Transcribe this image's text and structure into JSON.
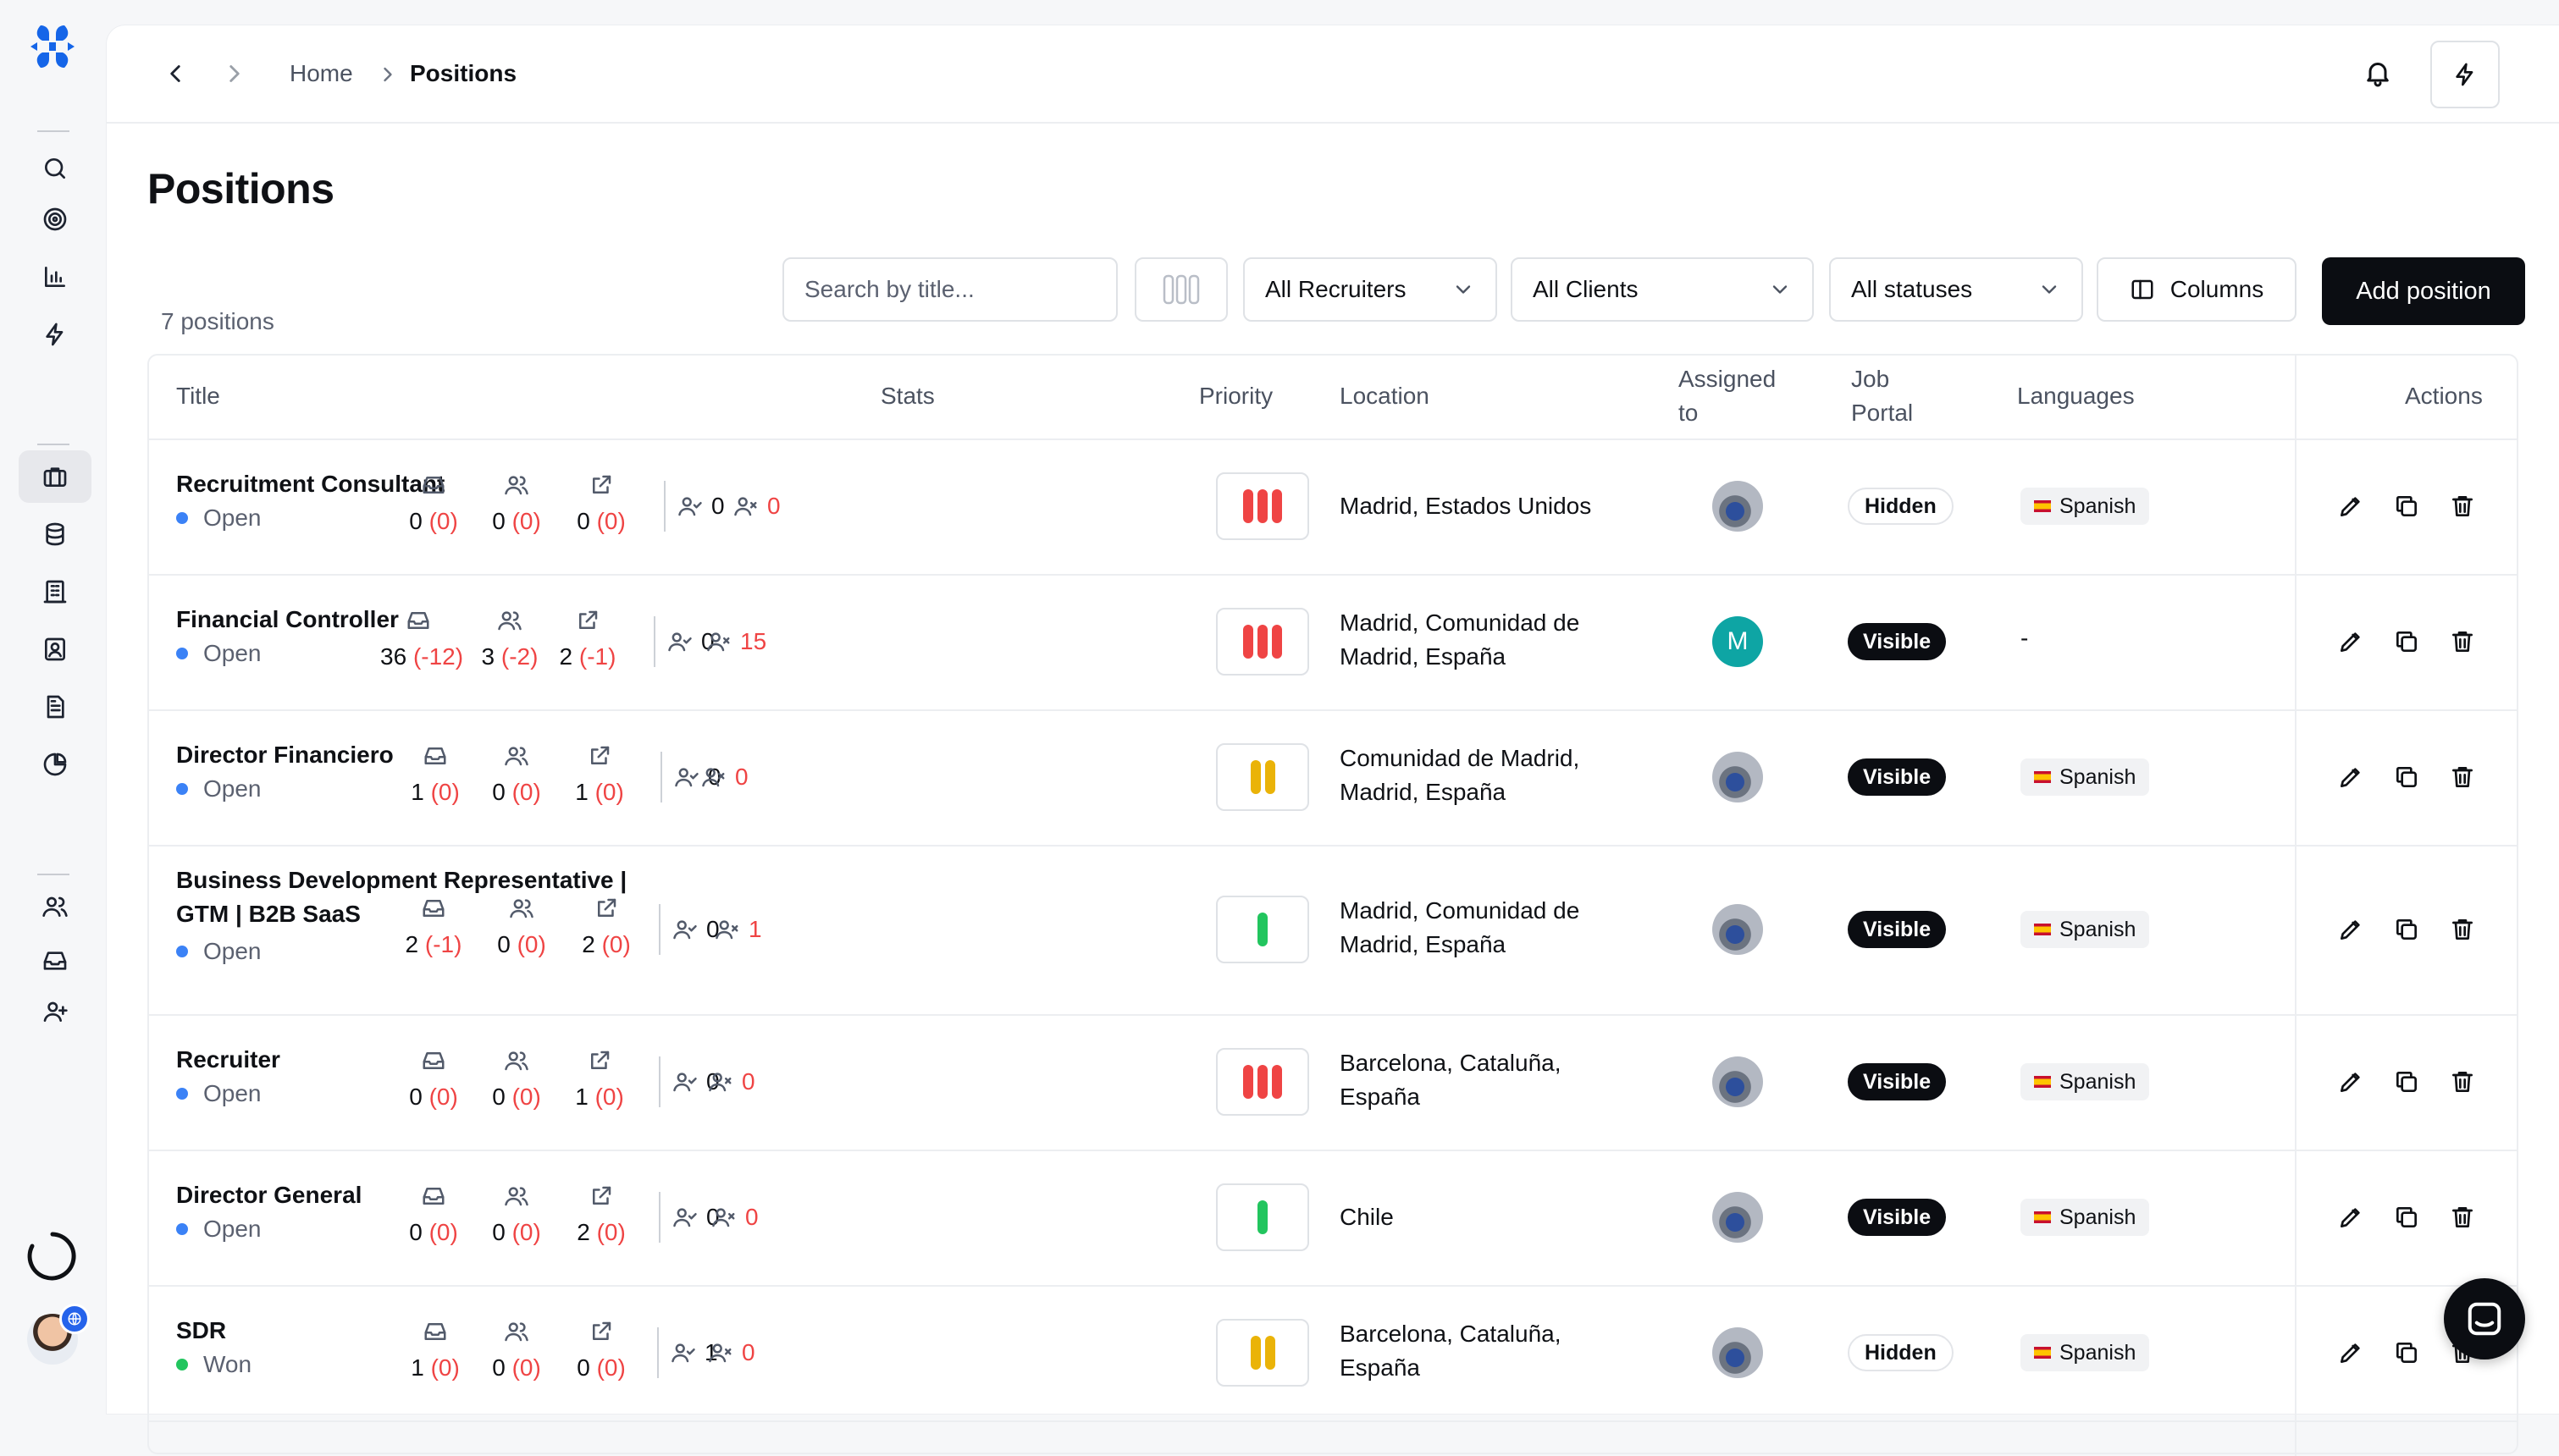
{
  "breadcrumb": {
    "home": "Home",
    "current": "Positions"
  },
  "page": {
    "title": "Positions",
    "count": "7 positions"
  },
  "toolbar": {
    "search_placeholder": "Search by title...",
    "recruiters": "All Recruiters",
    "clients": "All Clients",
    "statuses": "All statuses",
    "columns": "Columns",
    "add": "Add position"
  },
  "table": {
    "headers": {
      "title": "Title",
      "stats": "Stats",
      "priority": "Priority",
      "location": "Location",
      "assigned_1": "Assigned",
      "assigned_2": "to",
      "portal_1": "Job",
      "portal_2": "Portal",
      "languages": "Languages",
      "actions": "Actions"
    },
    "rows": [
      {
        "title": "Recruitment Consultant",
        "status": "Open",
        "stats": [
          {
            "n": "0",
            "d": "(0)"
          },
          {
            "n": "0",
            "d": "(0)"
          },
          {
            "n": "0",
            "d": "(0)"
          }
        ],
        "active": "0",
        "rejected": "0",
        "priority": "high",
        "location": "Madrid, Estados Unidos",
        "assignee": "photo",
        "portal": "Hidden",
        "language": "Spanish"
      },
      {
        "title": "Financial Controller",
        "status": "Open",
        "stats": [
          {
            "n": "36",
            "d": "(-12)"
          },
          {
            "n": "3",
            "d": "(-2)"
          },
          {
            "n": "2",
            "d": "(-1)"
          }
        ],
        "active": "0",
        "rejected": "15",
        "priority": "high",
        "location_1": "Madrid, Comunidad de",
        "location_2": "Madrid, España",
        "assignee": "M",
        "portal": "Visible",
        "language": "-"
      },
      {
        "title": "Director Financiero",
        "status": "Open",
        "stats": [
          {
            "n": "1",
            "d": "(0)"
          },
          {
            "n": "0",
            "d": "(0)"
          },
          {
            "n": "1",
            "d": "(0)"
          }
        ],
        "active": "0",
        "rejected": "0",
        "priority": "medium",
        "location_1": "Comunidad de Madrid,",
        "location_2": "Madrid, España",
        "assignee": "photo",
        "portal": "Visible",
        "language": "Spanish"
      },
      {
        "title_1": "Business Development Representative |",
        "title_2": "GTM | B2B SaaS",
        "status": "Open",
        "stats": [
          {
            "n": "2",
            "d": "(-1)"
          },
          {
            "n": "0",
            "d": "(0)"
          },
          {
            "n": "2",
            "d": "(0)"
          }
        ],
        "active": "0",
        "rejected": "1",
        "priority": "low",
        "location_1": "Madrid, Comunidad de",
        "location_2": "Madrid, España",
        "assignee": "photo",
        "portal": "Visible",
        "language": "Spanish"
      },
      {
        "title": "Recruiter",
        "status": "Open",
        "stats": [
          {
            "n": "0",
            "d": "(0)"
          },
          {
            "n": "0",
            "d": "(0)"
          },
          {
            "n": "1",
            "d": "(0)"
          }
        ],
        "active": "0",
        "rejected": "0",
        "priority": "high",
        "location_1": "Barcelona, Cataluña,",
        "location_2": "España",
        "assignee": "photo",
        "portal": "Visible",
        "language": "Spanish"
      },
      {
        "title": "Director General",
        "status": "Open",
        "stats": [
          {
            "n": "0",
            "d": "(0)"
          },
          {
            "n": "0",
            "d": "(0)"
          },
          {
            "n": "2",
            "d": "(0)"
          }
        ],
        "active": "0",
        "rejected": "0",
        "priority": "low",
        "location": "Chile",
        "assignee": "photo",
        "portal": "Visible",
        "language": "Spanish"
      },
      {
        "title": "SDR",
        "status": "Won",
        "stats": [
          {
            "n": "1",
            "d": "(0)"
          },
          {
            "n": "0",
            "d": "(0)"
          },
          {
            "n": "0",
            "d": "(0)"
          }
        ],
        "active": "1",
        "rejected": "0",
        "priority": "medium",
        "location_1": "Barcelona, Cataluña,",
        "location_2": "España",
        "assignee": "photo",
        "portal": "Hidden",
        "language": "Spanish"
      }
    ]
  },
  "colors": {
    "accent": "#1565e8",
    "open_dot": "#3b82f6",
    "won_dot": "#22c55e",
    "high": "#ef4444",
    "medium": "#eab308",
    "low": "#22c55e",
    "delta": "#ef4444"
  },
  "icons": [
    "logo-icon",
    "search-icon",
    "target-icon",
    "bar-chart-icon",
    "bolt-icon",
    "briefcase-icon",
    "database-icon",
    "building-icon",
    "contact-card-icon",
    "document-icon",
    "pie-chart-icon",
    "users-icon",
    "inbox-icon",
    "user-plus-icon",
    "bell-icon",
    "chat-icon"
  ]
}
